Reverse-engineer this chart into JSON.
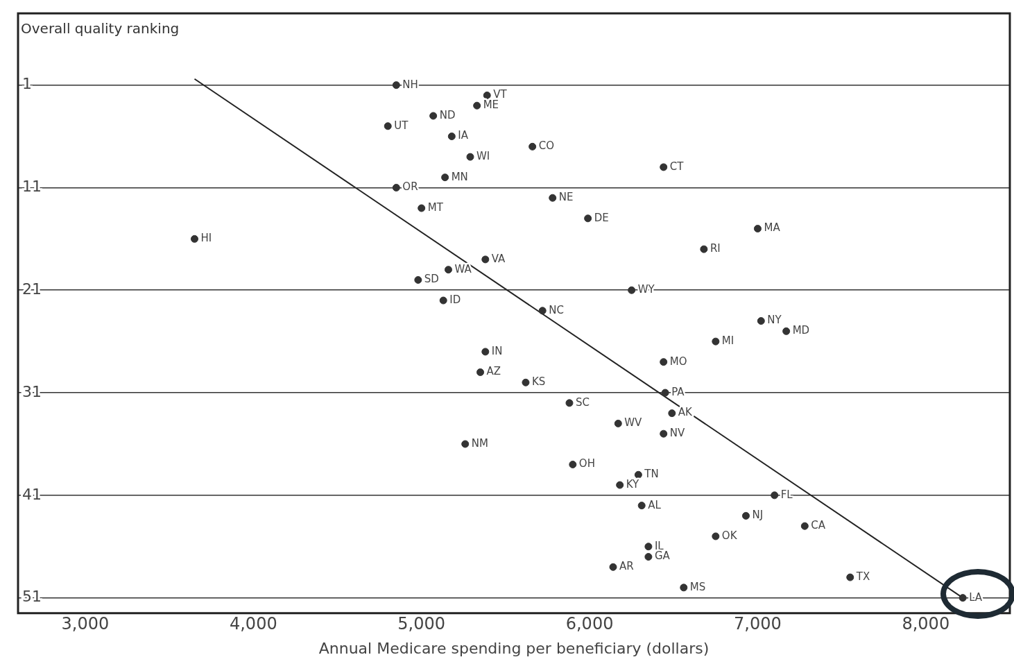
{
  "chart_data": {
    "type": "scatter",
    "ylabel": "Overall quality ranking",
    "xlabel": "Annual Medicare spending per beneficiary (dollars)",
    "xlim": [
      2600,
      8500
    ],
    "xticks": [
      {
        "value": 3000,
        "label": "3,000"
      },
      {
        "value": 4000,
        "label": "4,000"
      },
      {
        "value": 5000,
        "label": "5,000"
      },
      {
        "value": 6000,
        "label": "6,000"
      },
      {
        "value": 7000,
        "label": "7,000"
      },
      {
        "value": 8000,
        "label": "8,000"
      }
    ],
    "ylim": [
      52.5,
      -6
    ],
    "yticks": [
      1,
      11,
      21,
      31,
      41,
      51
    ],
    "grid": "y",
    "marker": "circle",
    "series": [
      {
        "color": "#333333",
        "x": [
          4850,
          5390,
          5330,
          5070,
          4800,
          5180,
          5660,
          5290,
          6440,
          5140,
          4850,
          5780,
          5000,
          5990,
          7000,
          3650,
          6680,
          5380,
          5160,
          4980,
          6250,
          5130,
          5720,
          7020,
          7170,
          6750,
          5380,
          6440,
          5350,
          5620,
          6450,
          5880,
          6490,
          6170,
          6440,
          5260,
          5900,
          6290,
          6180,
          7100,
          6310,
          6930,
          7280,
          6750,
          6350,
          6350,
          6140,
          7550,
          6560,
          8220
        ],
        "values": [
          1,
          2,
          3,
          4,
          5,
          6,
          7,
          8,
          9,
          10,
          11,
          12,
          13,
          14,
          15,
          16,
          17,
          18,
          19,
          20,
          21,
          22,
          23,
          24,
          25,
          26,
          27,
          28,
          29,
          30,
          31,
          32,
          33,
          34,
          35,
          36,
          38,
          39,
          40,
          41,
          42,
          43,
          44,
          45,
          46,
          47,
          48,
          49,
          50,
          51
        ]
      },
      {
        "type": "line",
        "color": "#222222",
        "marker": "none",
        "x": [
          3650,
          8220
        ],
        "values": [
          0.4,
          51
        ]
      }
    ],
    "annotations": [
      {
        "text": "NH",
        "x": 4850,
        "y": 1
      },
      {
        "text": "VT",
        "x": 5390,
        "y": 2
      },
      {
        "text": "ME",
        "x": 5330,
        "y": 3
      },
      {
        "text": "ND",
        "x": 5070,
        "y": 4
      },
      {
        "text": "UT",
        "x": 4800,
        "y": 5
      },
      {
        "text": "IA",
        "x": 5180,
        "y": 6
      },
      {
        "text": "CO",
        "x": 5660,
        "y": 7
      },
      {
        "text": "WI",
        "x": 5290,
        "y": 8
      },
      {
        "text": "CT",
        "x": 6440,
        "y": 9
      },
      {
        "text": "MN",
        "x": 5140,
        "y": 10
      },
      {
        "text": "OR",
        "x": 4850,
        "y": 11
      },
      {
        "text": "NE",
        "x": 5780,
        "y": 12
      },
      {
        "text": "MT",
        "x": 5000,
        "y": 13
      },
      {
        "text": "DE",
        "x": 5990,
        "y": 14
      },
      {
        "text": "MA",
        "x": 7000,
        "y": 15
      },
      {
        "text": "HI",
        "x": 3650,
        "y": 16
      },
      {
        "text": "RI",
        "x": 6680,
        "y": 17
      },
      {
        "text": "VA",
        "x": 5380,
        "y": 18
      },
      {
        "text": "WA",
        "x": 5160,
        "y": 19
      },
      {
        "text": "SD",
        "x": 4980,
        "y": 20
      },
      {
        "text": "WY",
        "x": 6250,
        "y": 21
      },
      {
        "text": "ID",
        "x": 5130,
        "y": 22
      },
      {
        "text": "NC",
        "x": 5720,
        "y": 23
      },
      {
        "text": "NY",
        "x": 7020,
        "y": 24
      },
      {
        "text": "MD",
        "x": 7170,
        "y": 25
      },
      {
        "text": "MI",
        "x": 6750,
        "y": 26
      },
      {
        "text": "IN",
        "x": 5380,
        "y": 27
      },
      {
        "text": "MO",
        "x": 6440,
        "y": 28
      },
      {
        "text": "AZ",
        "x": 5350,
        "y": 29
      },
      {
        "text": "KS",
        "x": 5620,
        "y": 30
      },
      {
        "text": "PA",
        "x": 6450,
        "y": 31
      },
      {
        "text": "SC",
        "x": 5880,
        "y": 32
      },
      {
        "text": "AK",
        "x": 6490,
        "y": 33
      },
      {
        "text": "WV",
        "x": 6170,
        "y": 34
      },
      {
        "text": "NV",
        "x": 6440,
        "y": 35
      },
      {
        "text": "NM",
        "x": 5260,
        "y": 36
      },
      {
        "text": "OH",
        "x": 5900,
        "y": 38
      },
      {
        "text": "TN",
        "x": 6290,
        "y": 39
      },
      {
        "text": "KY",
        "x": 6180,
        "y": 40
      },
      {
        "text": "FL",
        "x": 7100,
        "y": 41
      },
      {
        "text": "AL",
        "x": 6310,
        "y": 42
      },
      {
        "text": "NJ",
        "x": 6930,
        "y": 43
      },
      {
        "text": "CA",
        "x": 7280,
        "y": 44
      },
      {
        "text": "OK",
        "x": 6750,
        "y": 45
      },
      {
        "text": "IL",
        "x": 6350,
        "y": 46
      },
      {
        "text": "GA",
        "x": 6350,
        "y": 47
      },
      {
        "text": "AR",
        "x": 6140,
        "y": 48
      },
      {
        "text": "TX",
        "x": 7550,
        "y": 49
      },
      {
        "text": "MS",
        "x": 6560,
        "y": 50
      },
      {
        "text": "LA",
        "x": 8220,
        "y": 51
      }
    ]
  }
}
